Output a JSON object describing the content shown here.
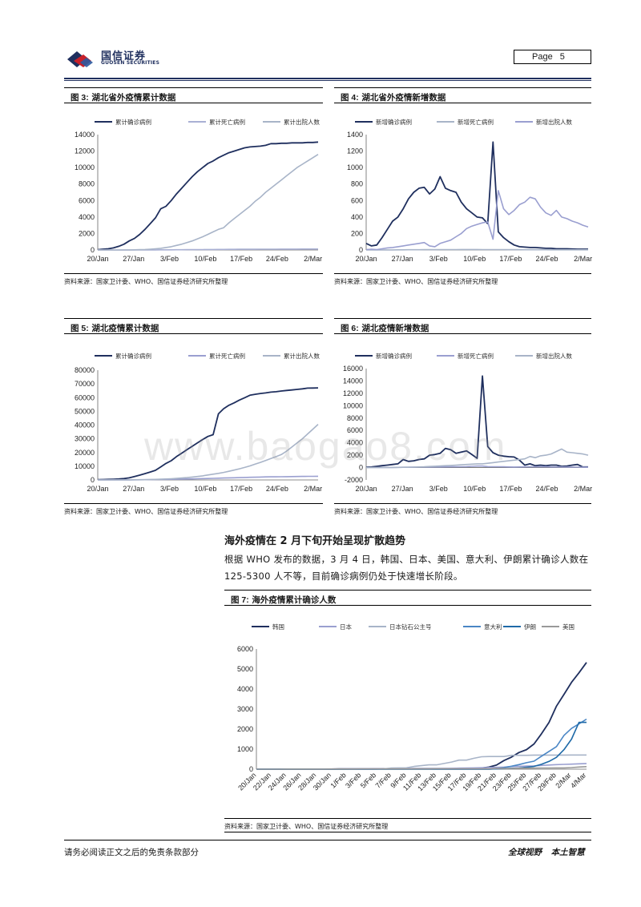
{
  "header": {
    "logo_cn": "国信证券",
    "logo_en": "GUOSEN SECURITIES",
    "page_label": "Page",
    "page_number": "5"
  },
  "watermark": "www.baogao8.com",
  "section": {
    "title": "海外疫情在 2 月下旬开始呈现扩散趋势",
    "paragraph": "根据 WHO 发布的数据，3 月 4 日，韩国、日本、美国、意大利、伊朗累计确诊人数在 125-5300 人不等，目前确诊病例仍处于快速增长阶段。"
  },
  "footer": {
    "left": "请务必阅读正文之后的免责条款部分",
    "right1": "全球视野",
    "right2": "本土智慧"
  },
  "chart_data": [
    {
      "id": "fig3",
      "type": "line",
      "fig_num": "图 3:",
      "title": "湖北省外疫情累计数据",
      "source": "资料来源：国家卫计委、WHO、国信证券经济研究所整理",
      "ylim": [
        0,
        14000
      ],
      "yticks": [
        0,
        2000,
        4000,
        6000,
        8000,
        10000,
        12000,
        14000
      ],
      "xticks": [
        "20/Jan",
        "27/Jan",
        "3/Feb",
        "10/Feb",
        "17/Feb",
        "24/Feb",
        "2/Mar"
      ],
      "x_count": 43,
      "legend_position": "top",
      "series": [
        {
          "name": "累计确诊病例",
          "color": "#1f2f5e",
          "values": [
            30,
            100,
            150,
            250,
            450,
            700,
            1100,
            1400,
            1900,
            2500,
            3200,
            3900,
            5000,
            5300,
            6000,
            6800,
            7500,
            8200,
            8900,
            9500,
            10000,
            10500,
            10800,
            11200,
            11500,
            11800,
            12000,
            12200,
            12400,
            12500,
            12550,
            12600,
            12700,
            12900,
            12900,
            12950,
            12950,
            13000,
            13000,
            13000,
            13050,
            13050,
            13100
          ]
        },
        {
          "name": "累计死亡病例",
          "color": "#a9b0d4",
          "values": [
            0,
            0,
            0,
            1,
            1,
            2,
            3,
            4,
            6,
            8,
            10,
            12,
            15,
            17,
            20,
            25,
            30,
            35,
            40,
            45,
            50,
            55,
            60,
            65,
            70,
            75,
            80,
            85,
            88,
            90,
            92,
            95,
            97,
            100,
            102,
            104,
            106,
            108,
            110,
            112,
            113,
            114,
            115
          ]
        },
        {
          "name": "累计出院人数",
          "color": "#a8b4c8",
          "values": [
            0,
            0,
            0,
            0,
            0,
            5,
            10,
            20,
            40,
            60,
            100,
            150,
            200,
            300,
            400,
            550,
            700,
            900,
            1100,
            1350,
            1600,
            1900,
            2200,
            2500,
            2700,
            3300,
            3800,
            4300,
            4800,
            5300,
            5900,
            6400,
            7000,
            7500,
            8000,
            8500,
            9000,
            9500,
            10000,
            10400,
            10800,
            11200,
            11600
          ]
        }
      ]
    },
    {
      "id": "fig4",
      "type": "line",
      "fig_num": "图 4:",
      "title": "湖北省外疫情新增数据",
      "source": "资料来源：国家卫计委、WHO、国信证券经济研究所整理",
      "ylim": [
        0,
        1400
      ],
      "yticks": [
        0,
        200,
        400,
        600,
        800,
        1000,
        1200,
        1400
      ],
      "xticks": [
        "20/Jan",
        "27/Jan",
        "3/Feb",
        "10/Feb",
        "17/Feb",
        "24/Feb",
        "2/Mar"
      ],
      "x_count": 43,
      "legend_position": "top",
      "series": [
        {
          "name": "新增确诊病例",
          "color": "#1f2f5e",
          "values": [
            80,
            50,
            60,
            150,
            250,
            350,
            400,
            500,
            620,
            700,
            750,
            760,
            680,
            740,
            890,
            750,
            720,
            700,
            580,
            500,
            450,
            400,
            390,
            320,
            1310,
            220,
            150,
            100,
            60,
            40,
            35,
            30,
            30,
            25,
            20,
            20,
            15,
            15,
            15,
            12,
            10,
            10,
            10
          ]
        },
        {
          "name": "新增死亡病例",
          "color": "#a8b4c8",
          "values": [
            0,
            0,
            0,
            1,
            1,
            1,
            2,
            2,
            3,
            3,
            3,
            4,
            4,
            4,
            5,
            5,
            5,
            5,
            6,
            6,
            6,
            6,
            5,
            5,
            5,
            5,
            5,
            4,
            4,
            4,
            3,
            3,
            3,
            3,
            3,
            2,
            2,
            2,
            2,
            2,
            2,
            2,
            2
          ]
        },
        {
          "name": "新增出院人数",
          "color": "#9a9fd0",
          "values": [
            5,
            10,
            5,
            15,
            25,
            30,
            40,
            50,
            60,
            70,
            80,
            90,
            50,
            40,
            80,
            100,
            120,
            160,
            200,
            260,
            290,
            310,
            330,
            340,
            130,
            720,
            500,
            430,
            480,
            550,
            580,
            640,
            620,
            520,
            450,
            420,
            480,
            400,
            380,
            350,
            330,
            300,
            280
          ]
        }
      ]
    },
    {
      "id": "fig5",
      "type": "line",
      "fig_num": "图 5:",
      "title": "湖北疫情累计数据",
      "source": "资料来源：国家卫计委、WHO、国信证券经济研究所整理",
      "ylim": [
        0,
        80000
      ],
      "yticks": [
        0,
        10000,
        20000,
        30000,
        40000,
        50000,
        60000,
        70000,
        80000
      ],
      "xticks": [
        "20/Jan",
        "27/Jan",
        "3/Feb",
        "10/Feb",
        "17/Feb",
        "24/Feb",
        "2/Mar"
      ],
      "x_count": 43,
      "legend_position": "top",
      "series": [
        {
          "name": "累计确诊病例",
          "color": "#1f2f5e",
          "values": [
            250,
            300,
            400,
            500,
            700,
            1000,
            1500,
            2500,
            3500,
            4600,
            5800,
            7000,
            9500,
            12000,
            14000,
            17000,
            19500,
            22000,
            24500,
            27000,
            29500,
            31700,
            33000,
            48200,
            51900,
            54400,
            56200,
            58200,
            59900,
            61700,
            62400,
            63000,
            63400,
            64000,
            64300,
            64800,
            65200,
            65600,
            66000,
            66400,
            66900,
            67000,
            67100
          ]
        },
        {
          "name": "累计死亡病例",
          "color": "#9a9fd0",
          "values": [
            10,
            15,
            20,
            30,
            40,
            60,
            80,
            100,
            130,
            170,
            220,
            280,
            350,
            420,
            480,
            550,
            620,
            700,
            780,
            870,
            970,
            1060,
            1150,
            1300,
            1400,
            1500,
            1600,
            1700,
            1800,
            1900,
            2000,
            2100,
            2200,
            2250,
            2300,
            2350,
            2400,
            2450,
            2500,
            2550,
            2600,
            2650,
            2700
          ]
        },
        {
          "name": "累计出院人数",
          "color": "#a8b4c8",
          "values": [
            0,
            5,
            10,
            20,
            30,
            50,
            70,
            100,
            150,
            200,
            280,
            400,
            500,
            700,
            900,
            1100,
            1400,
            1700,
            2100,
            2500,
            3000,
            3600,
            4200,
            4800,
            5500,
            6300,
            7200,
            8100,
            9100,
            10200,
            11500,
            12800,
            14200,
            15600,
            17000,
            18500,
            21000,
            24000,
            27000,
            30000,
            33500,
            37000,
            40500
          ]
        }
      ]
    },
    {
      "id": "fig6",
      "type": "line",
      "fig_num": "图 6:",
      "title": "湖北疫情新增数据",
      "source": "资料来源：国家卫计委、WHO、国信证券经济研究所整理",
      "ylim": [
        -2000,
        16000
      ],
      "yticks": [
        -2000,
        0,
        2000,
        4000,
        6000,
        8000,
        10000,
        12000,
        14000,
        16000
      ],
      "xticks": [
        "20/Jan",
        "27/Jan",
        "3/Feb",
        "10/Feb",
        "17/Feb",
        "24/Feb",
        "2/Mar"
      ],
      "x_count": 43,
      "legend_position": "top",
      "series": [
        {
          "name": "新增确诊病例",
          "color": "#1f2f5e",
          "values": [
            70,
            100,
            200,
            300,
            400,
            500,
            600,
            1300,
            1000,
            1100,
            1300,
            1400,
            2000,
            2100,
            2300,
            3100,
            2900,
            2300,
            2500,
            2700,
            2100,
            1500,
            14800,
            3400,
            2400,
            2000,
            1850,
            1750,
            1700,
            1200,
            400,
            600,
            300,
            400,
            300,
            400,
            400,
            200,
            250,
            400,
            500,
            100,
            100
          ]
        },
        {
          "name": "新增死亡病例",
          "color": "#9a9fd0",
          "values": [
            5,
            5,
            10,
            15,
            20,
            25,
            30,
            40,
            50,
            60,
            70,
            80,
            90,
            100,
            100,
            110,
            120,
            130,
            140,
            150,
            200,
            240,
            240,
            150,
            140,
            140,
            130,
            100,
            90,
            100,
            110,
            120,
            140,
            130,
            150,
            100,
            100,
            100,
            90,
            80,
            70,
            60,
            40
          ]
        },
        {
          "name": "新增出院人数",
          "color": "#a8b4c8",
          "values": [
            0,
            5,
            5,
            10,
            10,
            20,
            30,
            40,
            60,
            70,
            100,
            130,
            180,
            220,
            250,
            300,
            350,
            400,
            450,
            500,
            550,
            600,
            600,
            700,
            800,
            900,
            1000,
            1100,
            1200,
            1300,
            1400,
            1800,
            1600,
            1900,
            2000,
            2200,
            2600,
            3000,
            2500,
            2400,
            2300,
            2200,
            2000
          ]
        }
      ]
    },
    {
      "id": "fig7",
      "type": "line",
      "fig_num": "图 7:",
      "title": "海外疫情累计确诊人数",
      "source": "资料来源：国家卫计委、WHO、国信证券经济研究所整理",
      "ylim": [
        0,
        6000
      ],
      "yticks": [
        0,
        1000,
        2000,
        3000,
        4000,
        5000,
        6000
      ],
      "xticks": [
        "20/Jan",
        "22/Jan",
        "24/Jan",
        "26/Jan",
        "28/Jan",
        "30/Jan",
        "1/Feb",
        "3/Feb",
        "5/Feb",
        "7/Feb",
        "9/Feb",
        "11/Feb",
        "13/Feb",
        "15/Feb",
        "17/Feb",
        "19/Feb",
        "21/Feb",
        "23/Feb",
        "25/Feb",
        "27/Feb",
        "29/Feb",
        "2/Mar",
        "4/Mar"
      ],
      "x_count": 45,
      "legend_position": "top",
      "series": [
        {
          "name": "韩国",
          "color": "#1f2f5e",
          "values": [
            1,
            1,
            1,
            2,
            2,
            3,
            4,
            4,
            4,
            4,
            4,
            11,
            12,
            15,
            15,
            16,
            19,
            23,
            24,
            24,
            25,
            27,
            28,
            28,
            28,
            28,
            28,
            29,
            30,
            31,
            51,
            104,
            204,
            433,
            602,
            833,
            977,
            1261,
            1766,
            2337,
            3150,
            3736,
            4335,
            4812,
            5328
          ]
        },
        {
          "name": "日本",
          "color": "#9a9fd0",
          "values": [
            0,
            1,
            1,
            1,
            2,
            2,
            4,
            4,
            7,
            7,
            11,
            11,
            15,
            20,
            20,
            20,
            22,
            25,
            25,
            25,
            26,
            26,
            26,
            28,
            29,
            33,
            41,
            53,
            59,
            65,
            73,
            85,
            93,
            105,
            132,
            144,
            157,
            164,
            186,
            210,
            230,
            239,
            254,
            268,
            284
          ]
        },
        {
          "name": "日本钻石公主号",
          "color": "#a8b4c8",
          "values": [
            0,
            0,
            0,
            0,
            0,
            0,
            0,
            0,
            0,
            0,
            0,
            0,
            0,
            0,
            0,
            0,
            10,
            20,
            61,
            64,
            70,
            135,
            175,
            218,
            218,
            285,
            355,
            454,
            454,
            542,
            621,
            634,
            634,
            634,
            691,
            691,
            691,
            705,
            705,
            705,
            705,
            705,
            706,
            706,
            706
          ]
        },
        {
          "name": "意大利",
          "color": "#4a86c5",
          "values": [
            0,
            0,
            0,
            0,
            0,
            0,
            0,
            0,
            0,
            0,
            0,
            2,
            2,
            2,
            2,
            2,
            2,
            3,
            3,
            3,
            3,
            3,
            3,
            3,
            3,
            3,
            3,
            3,
            3,
            3,
            3,
            3,
            20,
            79,
            150,
            229,
            322,
            400,
            650,
            888,
            1128,
            1689,
            2036,
            2263,
            2502
          ]
        },
        {
          "name": "伊朗",
          "color": "#1f6aa8",
          "values": [
            0,
            0,
            0,
            0,
            0,
            0,
            0,
            0,
            0,
            0,
            0,
            0,
            0,
            0,
            0,
            0,
            0,
            0,
            0,
            0,
            0,
            0,
            0,
            0,
            0,
            0,
            0,
            0,
            0,
            0,
            2,
            5,
            18,
            28,
            43,
            61,
            95,
            139,
            245,
            388,
            593,
            978,
            1501,
            2336,
            2336
          ]
        },
        {
          "name": "美国",
          "color": "#999999",
          "values": [
            1,
            1,
            1,
            1,
            2,
            2,
            3,
            5,
            5,
            5,
            6,
            6,
            8,
            8,
            11,
            11,
            11,
            12,
            12,
            12,
            12,
            13,
            13,
            14,
            15,
            15,
            15,
            15,
            15,
            15,
            15,
            15,
            35,
            35,
            35,
            53,
            53,
            57,
            60,
            60,
            62,
            64,
            80,
            108,
            129
          ]
        }
      ]
    }
  ]
}
